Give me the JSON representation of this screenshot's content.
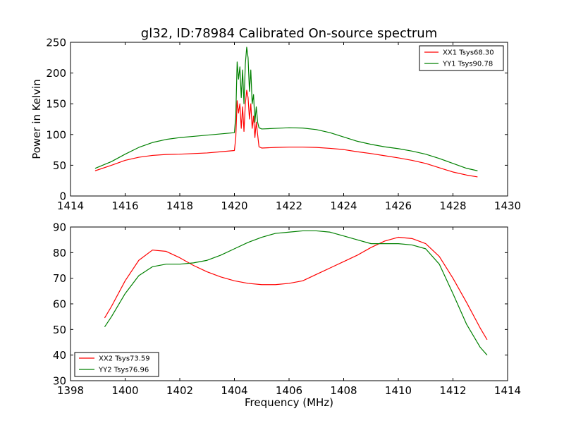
{
  "chart_data": [
    {
      "type": "line",
      "title": "gl32, ID:78984 Calibrated On-source spectrum",
      "xlabel": "",
      "ylabel": "Power in Kelvin",
      "xlim": [
        1414,
        1430
      ],
      "ylim": [
        0,
        250
      ],
      "xticks": [
        "1414",
        "1416",
        "1418",
        "1420",
        "1422",
        "1424",
        "1426",
        "1428",
        "1430"
      ],
      "yticks": [
        "0",
        "50",
        "100",
        "150",
        "200",
        "250"
      ],
      "legend_position": "top-right",
      "grid": false,
      "series": [
        {
          "name": "XX1 Tsys68.30",
          "color": "#ff0000",
          "x": [
            1414.9,
            1415.5,
            1416.0,
            1416.5,
            1417.0,
            1417.5,
            1418.0,
            1418.5,
            1419.0,
            1419.5,
            1420.0,
            1420.05,
            1420.1,
            1420.15,
            1420.2,
            1420.25,
            1420.3,
            1420.35,
            1420.4,
            1420.45,
            1420.5,
            1420.55,
            1420.6,
            1420.65,
            1420.7,
            1420.75,
            1420.8,
            1420.85,
            1420.9,
            1421.0,
            1421.5,
            1422.0,
            1422.5,
            1423.0,
            1423.5,
            1424.0,
            1424.5,
            1425.0,
            1425.5,
            1426.0,
            1426.5,
            1427.0,
            1427.5,
            1428.0,
            1428.5,
            1428.9
          ],
          "values": [
            41,
            50,
            58,
            63,
            66,
            67.5,
            68,
            69,
            70,
            72,
            74,
            95,
            155,
            135,
            150,
            110,
            145,
            105,
            150,
            172,
            160,
            125,
            150,
            110,
            130,
            95,
            120,
            100,
            80,
            78,
            79,
            79.5,
            79.5,
            79,
            77.5,
            75.5,
            72,
            69,
            65.5,
            62,
            58,
            53,
            46,
            39,
            34,
            31
          ]
        },
        {
          "name": "YY1 Tsys90.78",
          "color": "#008000",
          "x": [
            1414.9,
            1415.5,
            1416.0,
            1416.5,
            1417.0,
            1417.5,
            1418.0,
            1418.5,
            1419.0,
            1419.5,
            1420.0,
            1420.05,
            1420.1,
            1420.15,
            1420.2,
            1420.25,
            1420.3,
            1420.35,
            1420.4,
            1420.45,
            1420.5,
            1420.55,
            1420.6,
            1420.65,
            1420.7,
            1420.75,
            1420.8,
            1420.85,
            1420.9,
            1421.0,
            1421.5,
            1422.0,
            1422.5,
            1423.0,
            1423.5,
            1424.0,
            1424.5,
            1425.0,
            1425.5,
            1426.0,
            1426.5,
            1427.0,
            1427.5,
            1428.0,
            1428.5,
            1428.9
          ],
          "values": [
            45,
            56,
            68,
            79,
            87,
            92,
            95,
            97,
            99,
            101,
            103,
            130,
            218,
            190,
            210,
            160,
            205,
            150,
            215,
            242,
            225,
            170,
            205,
            150,
            165,
            120,
            145,
            120,
            111,
            109,
            110,
            111,
            110.5,
            108,
            103,
            96,
            89,
            84,
            80,
            77,
            73,
            68,
            61,
            53,
            45,
            41
          ]
        }
      ]
    },
    {
      "type": "line",
      "title": "",
      "xlabel": "Frequency (MHz)",
      "ylabel": "",
      "xlim": [
        1398,
        1414
      ],
      "ylim": [
        30,
        90
      ],
      "xticks": [
        "1398",
        "1400",
        "1402",
        "1404",
        "1406",
        "1408",
        "1410",
        "1412",
        "1414"
      ],
      "yticks": [
        "30",
        "40",
        "50",
        "60",
        "70",
        "80",
        "90"
      ],
      "legend_position": "bottom-left",
      "grid": false,
      "series": [
        {
          "name": "XX2 Tsys73.59",
          "color": "#ff0000",
          "x": [
            1399.25,
            1399.5,
            1400.0,
            1400.5,
            1401.0,
            1401.5,
            1402.0,
            1402.5,
            1403.0,
            1403.5,
            1404.0,
            1404.5,
            1405.0,
            1405.5,
            1406.0,
            1406.5,
            1407.0,
            1407.5,
            1408.0,
            1408.5,
            1409.0,
            1409.5,
            1410.0,
            1410.5,
            1411.0,
            1411.5,
            1412.0,
            1412.5,
            1413.0,
            1413.25
          ],
          "values": [
            54.5,
            59,
            69,
            77,
            81,
            80.5,
            78,
            75,
            72.5,
            70.5,
            69,
            68,
            67.5,
            67.5,
            68,
            69,
            71.5,
            74,
            76.5,
            79,
            82,
            84.5,
            86,
            85.5,
            83.5,
            78.5,
            70,
            60.5,
            50.5,
            46
          ]
        },
        {
          "name": "YY2 Tsys76.96",
          "color": "#008000",
          "x": [
            1399.25,
            1399.5,
            1400.0,
            1400.5,
            1401.0,
            1401.5,
            1402.0,
            1402.5,
            1403.0,
            1403.5,
            1404.0,
            1404.5,
            1405.0,
            1405.5,
            1406.0,
            1406.5,
            1407.0,
            1407.5,
            1408.0,
            1408.5,
            1409.0,
            1409.5,
            1410.0,
            1410.5,
            1411.0,
            1411.5,
            1412.0,
            1412.5,
            1413.0,
            1413.25
          ],
          "values": [
            51,
            55,
            64,
            71,
            74.5,
            75.5,
            75.5,
            76,
            77,
            79,
            81.5,
            84,
            86,
            87.5,
            88,
            88.5,
            88.5,
            88,
            86.5,
            85,
            83.5,
            83.5,
            83.5,
            83,
            81.5,
            75.5,
            64,
            52,
            43,
            40
          ]
        }
      ]
    }
  ]
}
